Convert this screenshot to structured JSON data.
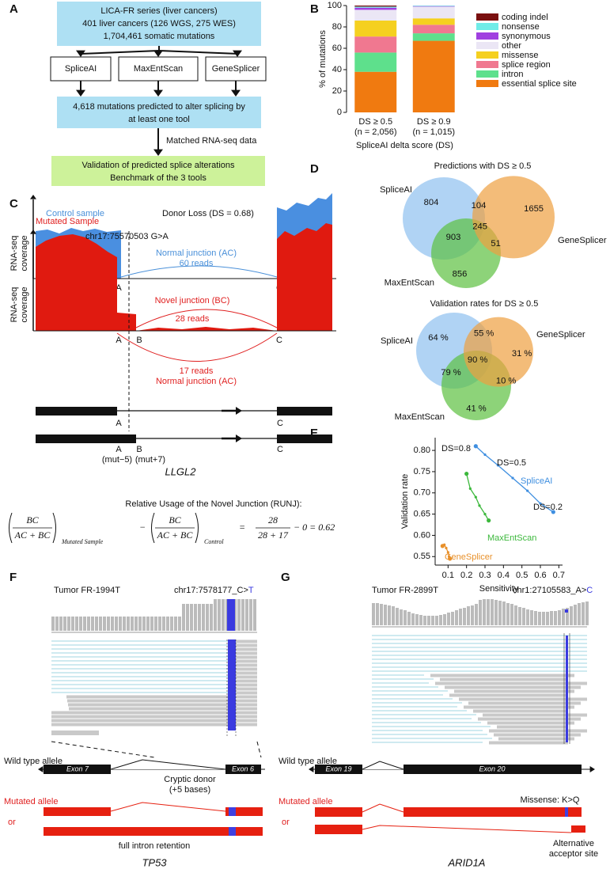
{
  "panel_labels": [
    "A",
    "B",
    "C",
    "D",
    "E",
    "F",
    "G"
  ],
  "panel_a": {
    "source": [
      "LICA-FR series (liver cancers)",
      "401 liver cancers (126 WGS, 275 WES)",
      "1,704,461 somatic mutations"
    ],
    "tools": [
      "SpliceAI",
      "MaxEntScan",
      "GeneSplicer"
    ],
    "predicted": [
      "4,618 mutations predicted to alter splicing by",
      "at least one tool"
    ],
    "arrow_label": "Matched RNA-seq data",
    "validation": [
      "Validation of predicted splice alterations",
      "Benchmark of the 3 tools"
    ]
  },
  "chart_data": [
    {
      "type": "bar",
      "stacked": true,
      "ylabel": "% of mutations",
      "xlabel": "SpliceAI delta score (DS)",
      "categories": [
        "DS ≥ 0.5",
        "DS ≥ 0.9"
      ],
      "category_counts": [
        "(n = 2,056)",
        "(n = 1,015)"
      ],
      "ylim": [
        0,
        100
      ],
      "yticks": [
        0,
        20,
        40,
        60,
        80,
        100
      ],
      "legend": "right",
      "series": [
        {
          "name": "essential splice site",
          "color": "#f07a10",
          "values": [
            38,
            67
          ]
        },
        {
          "name": "intron",
          "color": "#5ee08c",
          "values": [
            18,
            7
          ]
        },
        {
          "name": "splice region",
          "color": "#f07890",
          "values": [
            15,
            8
          ]
        },
        {
          "name": "missense",
          "color": "#f5d020",
          "values": [
            15,
            6
          ]
        },
        {
          "name": "other",
          "color": "#ebe6f5",
          "values": [
            10,
            11
          ]
        },
        {
          "name": "synonymous",
          "color": "#a040e0",
          "values": [
            2,
            0.5
          ]
        },
        {
          "name": "nonsense",
          "color": "#70ece8",
          "values": [
            1,
            0.5
          ]
        },
        {
          "name": "coding indel",
          "color": "#7a1010",
          "values": [
            1,
            0
          ]
        }
      ]
    },
    {
      "type": "line",
      "xlabel": "Sensitivity",
      "ylabel": "Validation rate",
      "xlim": [
        0.03,
        0.72
      ],
      "ylim": [
        0.53,
        0.83
      ],
      "xticks": [
        0.1,
        0.2,
        0.3,
        0.4,
        0.5,
        0.6,
        0.7
      ],
      "yticks": [
        0.55,
        {
          "value": 0.6,
          "label": "0.60"
        },
        {
          "value": 0.65,
          "label": "0.65"
        },
        {
          "value": 0.7,
          "label": "0.70"
        },
        0.75,
        {
          "value": 0.8,
          "label": "0.80"
        }
      ],
      "series": [
        {
          "name": "SpliceAI",
          "color": "#3f8fe0",
          "x": [
            0.25,
            0.3,
            0.37,
            0.45,
            0.53,
            0.6,
            0.67
          ],
          "values": [
            0.81,
            0.79,
            0.765,
            0.735,
            0.705,
            0.675,
            0.655
          ]
        },
        {
          "name": "MaxEntScan",
          "color": "#3cb83c",
          "x": [
            0.2,
            0.22,
            0.25,
            0.27,
            0.3,
            0.32
          ],
          "values": [
            0.745,
            0.71,
            0.69,
            0.67,
            0.65,
            0.635
          ]
        },
        {
          "name": "GeneSplicer",
          "color": "#e8902a",
          "x": [
            0.07,
            0.08,
            0.09,
            0.1,
            0.105,
            0.11
          ],
          "values": [
            0.575,
            0.578,
            0.57,
            0.56,
            0.55,
            0.545
          ]
        }
      ],
      "annotations": [
        "DS=0.8",
        "DS=0.5",
        "DS=0.2"
      ]
    }
  ],
  "panel_c": {
    "control": {
      "label": "Control sample",
      "title": "Donor Loss (DS = 0.68)",
      "junction": "Normal junction (AC)",
      "reads": "60 reads",
      "ylabel": [
        "RNA-seq",
        "coverage"
      ],
      "sites": [
        "A",
        "C"
      ]
    },
    "mutated": {
      "label": "Mutated Sample",
      "variant": "chr17:75570503 G>A",
      "novel_junction": "Novel junction (BC)",
      "novel_reads": "28 reads",
      "normal_reads": "17 reads",
      "normal_junction": "Normal junction (AC)",
      "ylabel": [
        "RNA-seq",
        "coverage"
      ],
      "sites": [
        "A",
        "B",
        "C"
      ]
    },
    "gene_model": {
      "row1_sites": [
        "A",
        "C"
      ],
      "row2_sites": [
        "A",
        "B",
        "C"
      ],
      "offsets": [
        "(mut−5)",
        "(mut+7)"
      ],
      "gene": "LLGL2"
    },
    "runj": {
      "title": "Relative Usage of the Novel Junction (RUNJ):",
      "term1": {
        "num": "BC",
        "den": "AC + BC",
        "sub": "Mutated Sample"
      },
      "minus": "−",
      "term2": {
        "num": "BC",
        "den": "AC + BC",
        "sub": "Control"
      },
      "equals": "=",
      "term3": {
        "num": "28",
        "den": "28 + 17"
      },
      "result": "− 0 = 0.62"
    }
  },
  "panel_d": {
    "predictions": {
      "title": "Predictions with DS ≥ 0.5",
      "sets": [
        "SpliceAI",
        "MaxEntScan",
        "GeneSplicer"
      ],
      "regions": {
        "spliceai_only": 804,
        "genesplicer_only": 1655,
        "maxentscan_only": 856,
        "spliceai_genesplicer": 104,
        "spliceai_maxentscan": 903,
        "maxentscan_genesplicer": 51,
        "all": 245
      }
    },
    "validation": {
      "title": "Validation rates for DS ≥ 0.5",
      "sets": [
        "SpliceAI",
        "MaxEntScan",
        "GeneSplicer"
      ],
      "regions": {
        "spliceai_only": "64 %",
        "genesplicer_only": "31 %",
        "maxentscan_only": "41 %",
        "spliceai_genesplicer": "55 %",
        "spliceai_maxentscan": "79 %",
        "maxentscan_genesplicer": "10 %",
        "all": "90 %"
      }
    }
  },
  "panel_f": {
    "sample": "Tumor FR-1994T",
    "variant_ref": "chr17:7578177_C>",
    "variant_alt": "T",
    "wild_type": "Wild type allele",
    "exons": [
      "Exon 7",
      "Exon 6"
    ],
    "mutated": "Mutated allele",
    "cryptic": [
      "Cryptic donor",
      "(+5 bases)"
    ],
    "or": "or",
    "retention": "full intron retention",
    "gene": "TP53"
  },
  "panel_g": {
    "sample": "Tumor FR-2899T",
    "variant_ref": "chr1:27105583_A>",
    "variant_alt": "C",
    "wild_type": "Wild type allele",
    "exons": [
      "Exon 19",
      "Exon 20"
    ],
    "mutated": "Mutated allele",
    "missense": "Missense: K>Q",
    "or": "or",
    "acceptor": [
      "Alternative",
      "acceptor site"
    ],
    "gene": "ARID1A"
  }
}
